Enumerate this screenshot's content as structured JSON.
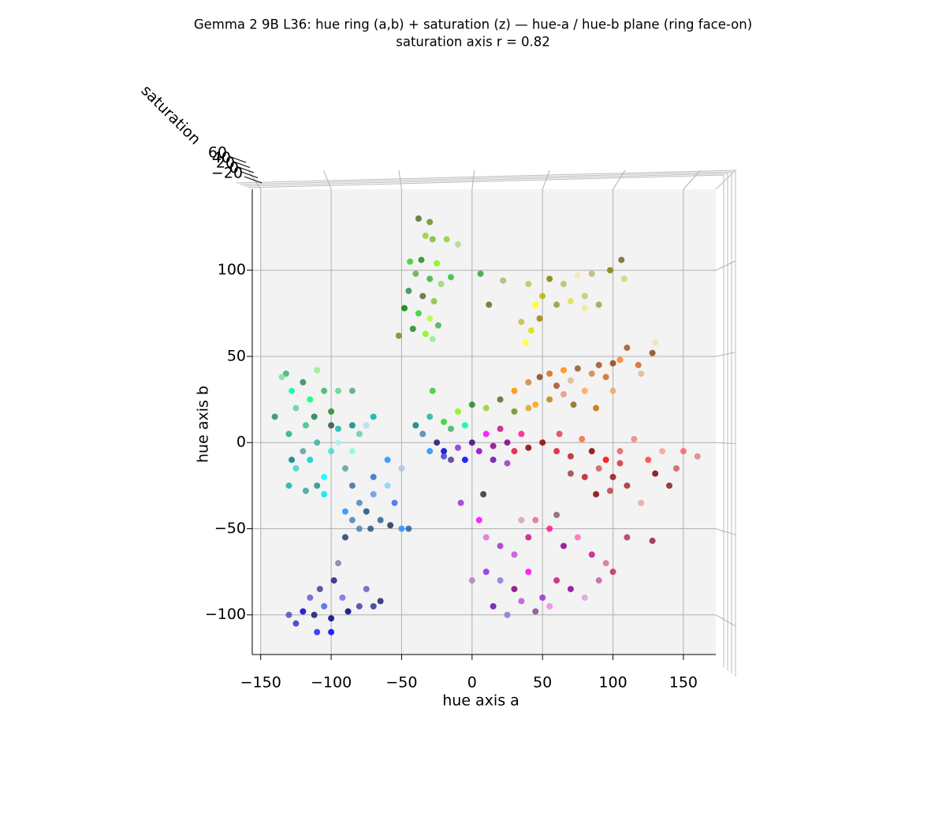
{
  "chart_data": {
    "type": "scatter",
    "title": "Gemma 2 9B L36: hue ring (a,b) + saturation (z) — hue-a / hue-b plane (ring face-on)",
    "subtitle": "saturation axis r = 0.82",
    "x_label": "hue axis a",
    "y_label": "hue axis b",
    "z_label": "saturation",
    "xlim": [
      -156,
      173
    ],
    "ylim": [
      -123,
      147
    ],
    "xticks": [
      {
        "value": -150,
        "label": "−150"
      },
      {
        "value": -100,
        "label": "−100"
      },
      {
        "value": -50,
        "label": "−50"
      },
      0,
      50,
      100,
      150
    ],
    "yticks": [
      {
        "value": -100,
        "label": "−100"
      },
      {
        "value": -50,
        "label": "−50"
      },
      0,
      50,
      100
    ],
    "zticks": [
      {
        "value": -20,
        "label": "−20"
      },
      0,
      20,
      40,
      60
    ],
    "grid": true,
    "x": [
      -38,
      -30,
      -33,
      -28,
      -44,
      -36,
      -25,
      -40,
      -30,
      -22,
      -45,
      -35,
      -27,
      -48,
      -38,
      -30,
      -42,
      -33,
      -24,
      -52,
      -28,
      -18,
      -10,
      -15,
      6,
      22,
      40,
      55,
      65,
      75,
      85,
      98,
      106,
      108,
      45,
      50,
      60,
      70,
      80,
      90,
      35,
      42,
      48,
      38,
      80,
      12,
      30,
      40,
      48,
      55,
      60,
      65,
      70,
      75,
      80,
      85,
      90,
      95,
      100,
      105,
      110,
      118,
      128,
      130,
      120,
      65,
      55,
      72,
      45,
      100,
      88,
      50,
      60,
      70,
      78,
      85,
      90,
      95,
      100,
      105,
      110,
      115,
      125,
      130,
      135,
      145,
      150,
      160,
      80,
      88,
      98,
      70,
      120,
      140,
      105,
      62,
      5,
      10,
      20,
      30,
      40,
      45,
      55,
      65,
      75,
      85,
      95,
      110,
      128,
      10,
      20,
      30,
      40,
      50,
      60,
      70,
      80,
      90,
      100,
      15,
      25,
      35,
      45,
      55,
      0,
      35,
      60,
      -8,
      -120,
      -112,
      -105,
      -100,
      -115,
      -108,
      -98,
      -92,
      -88,
      -80,
      -70,
      -75,
      -95,
      -125,
      -110,
      -65,
      -130,
      -100,
      -90,
      -85,
      -80,
      -75,
      -70,
      -65,
      -60,
      -55,
      -60,
      -50,
      -70,
      -90,
      -80,
      -50,
      -45,
      -85,
      -72,
      -58,
      -130,
      -125,
      -120,
      -115,
      -110,
      -105,
      -100,
      -95,
      -90,
      -85,
      -80,
      -75,
      -70,
      -85,
      -95,
      -110,
      -128,
      -105,
      -118,
      -100,
      -140,
      -132,
      -128,
      -125,
      -120,
      -115,
      -110,
      -105,
      -100,
      -130,
      -118,
      -112,
      -95,
      -85,
      -135,
      -40,
      -35,
      -30,
      -25,
      -20,
      -15,
      -10,
      -5,
      0,
      5,
      10,
      15,
      20,
      25,
      30,
      35,
      40,
      -30,
      -20,
      -10,
      0,
      10,
      20,
      30,
      40,
      -5,
      -15,
      15,
      25,
      -28,
      8,
      -20
    ],
    "y": [
      130,
      128,
      120,
      118,
      105,
      106,
      104,
      98,
      95,
      92,
      88,
      85,
      82,
      78,
      75,
      72,
      66,
      63,
      68,
      62,
      60,
      118,
      115,
      96,
      98,
      94,
      92,
      95,
      92,
      97,
      98,
      100,
      106,
      95,
      80,
      85,
      80,
      82,
      85,
      80,
      70,
      65,
      72,
      58,
      78,
      80,
      30,
      35,
      38,
      40,
      33,
      42,
      36,
      43,
      30,
      40,
      45,
      38,
      46,
      48,
      55,
      45,
      52,
      58,
      40,
      28,
      25,
      22,
      22,
      30,
      20,
      0,
      -5,
      -8,
      2,
      -5,
      -15,
      -10,
      -20,
      -5,
      -25,
      2,
      -10,
      -18,
      -5,
      -15,
      -5,
      -8,
      -20,
      -30,
      -28,
      -18,
      -35,
      -25,
      -12,
      5,
      -45,
      -55,
      -60,
      -65,
      -55,
      -45,
      -50,
      -60,
      -55,
      -65,
      -70,
      -55,
      -57,
      -75,
      -80,
      -85,
      -75,
      -90,
      -80,
      -85,
      -90,
      -80,
      -75,
      -95,
      -100,
      -92,
      -98,
      -95,
      -80,
      -45,
      -42,
      -35,
      -98,
      -100,
      -95,
      -102,
      -90,
      -85,
      -80,
      -90,
      -98,
      -95,
      -95,
      -85,
      -70,
      -105,
      -110,
      -92,
      -100,
      -110,
      -40,
      -45,
      -35,
      -40,
      -30,
      -45,
      -25,
      -35,
      -10,
      -15,
      -20,
      -55,
      -50,
      -50,
      -50,
      -25,
      -50,
      -48,
      -25,
      -15,
      -5,
      -10,
      -25,
      -20,
      -5,
      0,
      -15,
      -5,
      5,
      10,
      15,
      10,
      8,
      0,
      -10,
      -30,
      -28,
      10,
      15,
      40,
      30,
      20,
      35,
      25,
      42,
      30,
      18,
      5,
      10,
      15,
      30,
      30,
      38,
      10,
      5,
      15,
      0,
      -5,
      8,
      -3,
      10,
      0,
      -5,
      5,
      -2,
      8,
      0,
      -5,
      5,
      -3,
      -5,
      12,
      18,
      22,
      20,
      25,
      18,
      20,
      -10,
      -10,
      -10,
      -12,
      30,
      -30,
      -8
    ],
    "colors": [
      "#556b2f",
      "#6b8e23",
      "#9acd32",
      "#7cba3f",
      "#32cd32",
      "#228b22",
      "#7cfc00",
      "#6aa84f",
      "#3cb043",
      "#9bd770",
      "#2e8b57",
      "#556b2f",
      "#8fbc3f",
      "#008000",
      "#32cd32",
      "#adff2f",
      "#228b22",
      "#7cfc00",
      "#4caf50",
      "#6b8e23",
      "#90ee90",
      "#9acd32",
      "#b0d88a",
      "#2fc12f",
      "#3a9e3a",
      "#a8b878",
      "#c0c060",
      "#808000",
      "#bdb76b",
      "#eee8aa",
      "#bdb76b",
      "#808000",
      "#6b6b20",
      "#d4d470",
      "#ffff00",
      "#b8b800",
      "#9a9a30",
      "#e0e040",
      "#c8c870",
      "#a0a050",
      "#c0c040",
      "#dddd00",
      "#a08000",
      "#ffff33",
      "#f0e68c",
      "#6b6b20",
      "#ff8c00",
      "#cd853f",
      "#8b4513",
      "#d2691e",
      "#a0522d",
      "#ff8c00",
      "#deb887",
      "#8b5a2b",
      "#ffa54f",
      "#cd853f",
      "#a0522d",
      "#d2691e",
      "#8b4513",
      "#ff7f24",
      "#a0522d",
      "#d2691e",
      "#8b4513",
      "#f5deb3",
      "#deb887",
      "#e9967a",
      "#b8860b",
      "#8b6914",
      "#ffa500",
      "#f4a460",
      "#cd6600",
      "#8b0000",
      "#dc143c",
      "#b22222",
      "#ff6347",
      "#800000",
      "#cd5c5c",
      "#ff0000",
      "#8b1a1a",
      "#e06060",
      "#a52a2a",
      "#f08080",
      "#ff4040",
      "#800000",
      "#f4a0a0",
      "#cd5c5c",
      "#ff6060",
      "#e08080",
      "#b22222",
      "#8b0000",
      "#c04040",
      "#a04040",
      "#f0a0a0",
      "#802020",
      "#d03030",
      "#e04050",
      "#ff00ff",
      "#da70d6",
      "#9932cc",
      "#ba55d3",
      "#c71585",
      "#db7093",
      "#ff1493",
      "#8b008b",
      "#ff69b4",
      "#c71585",
      "#db7093",
      "#b03060",
      "#8b2252",
      "#8a2be2",
      "#9370db",
      "#800080",
      "#ff00ff",
      "#9932cc",
      "#c71585",
      "#8b008b",
      "#dda0dd",
      "#c060a0",
      "#b0306e",
      "#6a0dad",
      "#9370db",
      "#ba55d3",
      "#8b4789",
      "#ee82ee",
      "#b080c0",
      "#d0a0b0",
      "#806070",
      "#9932cc",
      "#0000cd",
      "#191970",
      "#4169e1",
      "#00008b",
      "#6a5acd",
      "#483d8b",
      "#1e1e90",
      "#7b68ee",
      "#000080",
      "#4040a0",
      "#3030a0",
      "#6060c0",
      "#8080a0",
      "#3333cc",
      "#2020ff",
      "#202070",
      "#5050c0",
      "#0000ff",
      "#1e90ff",
      "#4682b4",
      "#5a7fb0",
      "#1c4e80",
      "#6495ed",
      "#2f5f8f",
      "#87cefa",
      "#4169e1",
      "#1e90ff",
      "#b0c4de",
      "#3070c0",
      "#1c3f6f",
      "#4682b4",
      "#1e90ff",
      "#2060a0",
      "#3a6ea5",
      "#305080",
      "#203050",
      "#20b2aa",
      "#48d1cc",
      "#5f9ea0",
      "#00ced1",
      "#2e8b87",
      "#00ffff",
      "#40e0d0",
      "#afeeee",
      "#5f9ea0",
      "#7fffd4",
      "#66cdaa",
      "#b0e0e6",
      "#00b0b0",
      "#008b8b",
      "#20b2aa",
      "#3cb0a0",
      "#008080",
      "#00e5ee",
      "#40a0a0",
      "#2f4f4f",
      "#2e8b57",
      "#3cb371",
      "#00fa9a",
      "#66cdaa",
      "#2e8b57",
      "#00ff7f",
      "#90ee90",
      "#3cb371",
      "#228b22",
      "#20b28a",
      "#40c080",
      "#1e7e4e",
      "#5fd38f",
      "#4ca87a",
      "#7fe0a0",
      "#008080",
      "#4682b4",
      "#20b2aa",
      "#191970",
      "#0000cd",
      "#3cb371",
      "#8a2be2",
      "#00fa9a",
      "#4b0082",
      "#9400d3",
      "#ff00ff",
      "#8b008b",
      "#c71585",
      "#800080",
      "#dc143c",
      "#ff1493",
      "#8b0000",
      "#1e90ff",
      "#32cd32",
      "#7cfc00",
      "#228b22",
      "#9acd32",
      "#556b2f",
      "#6b8e23",
      "#daa520",
      "#0000ff",
      "#483d8b",
      "#6a0dad",
      "#9932cc",
      "#32cd32",
      "#303030",
      "#4040d0"
    ]
  }
}
